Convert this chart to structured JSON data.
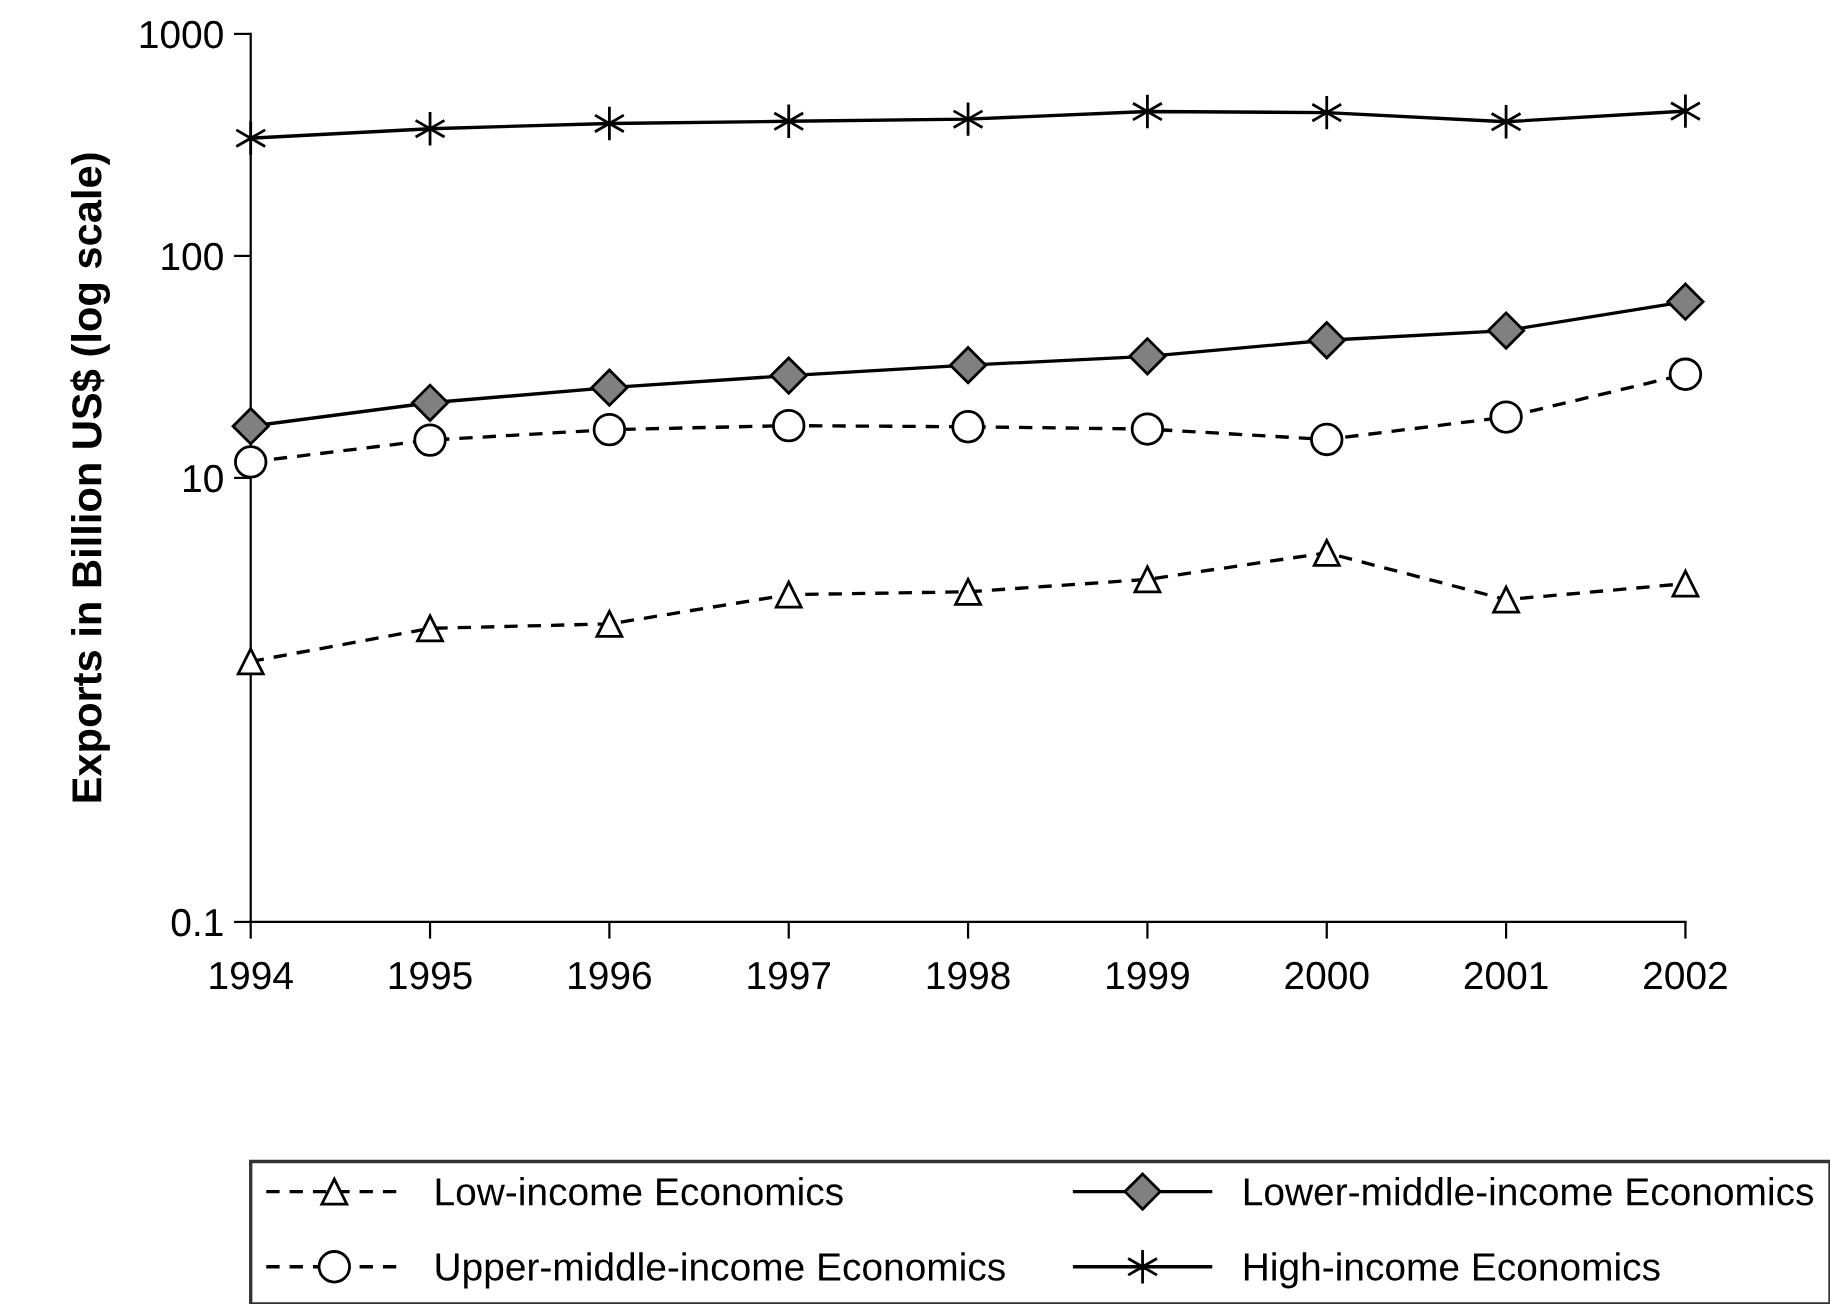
{
  "chart_data": {
    "type": "line",
    "ylabel": "Exports in Billion US$ (log scale)",
    "x": [
      1994,
      1995,
      1996,
      1997,
      1998,
      1999,
      2000,
      2001,
      2002
    ],
    "xlim": [
      1994,
      2002
    ],
    "xticks": [
      1994,
      1995,
      1996,
      1997,
      1998,
      1999,
      2000,
      2001,
      2002
    ],
    "ylim": [
      0.1,
      1000
    ],
    "yticks": [
      0.1,
      10,
      100,
      1000
    ],
    "log": true,
    "grid": false,
    "legend": "bottom",
    "series": [
      {
        "name": "Low-income Economics",
        "color": "#ffffff",
        "marker": "triangle",
        "line_style": "dashed",
        "values": [
          1.49,
          2.1,
          2.2,
          2.98,
          3.07,
          3.49,
          4.6,
          2.83,
          3.34
        ]
      },
      {
        "name": "Lower-middle-income Economics",
        "color": "#808080",
        "marker": "diamond",
        "line_style": "solid",
        "values": [
          17.1,
          21.8,
          25.5,
          28.9,
          32.2,
          35.3,
          41.7,
          46.1,
          62.2
        ]
      },
      {
        "name": "Upper-middle-income Economics",
        "color": "#ffffff",
        "marker": "circle",
        "line_style": "dashed",
        "values": [
          11.8,
          14.8,
          16.5,
          17.2,
          17.0,
          16.6,
          14.9,
          18.8,
          29.3
        ]
      },
      {
        "name": "High-income Economics",
        "color": "#000000",
        "marker": "cross",
        "line_style": "solid",
        "values": [
          339,
          374,
          395,
          404,
          413,
          447,
          442,
          402,
          449
        ]
      }
    ]
  }
}
